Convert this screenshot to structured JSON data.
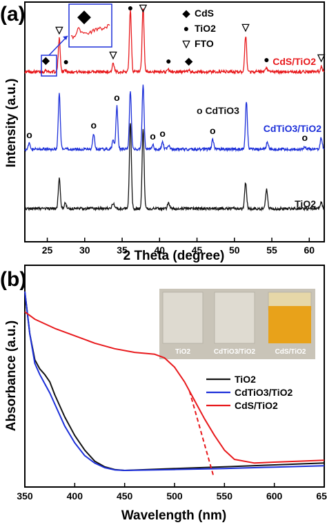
{
  "panels": {
    "a": "(a)",
    "b": "(b)"
  },
  "colors": {
    "red": "#e8191c",
    "blue": "#1c2fd9",
    "black": "#111111",
    "cds_film": "#e8a21a"
  },
  "chart_data": [
    {
      "type": "line",
      "title": "",
      "xlabel": "2 Theta (degree)",
      "ylabel": "Intensity (a.u.)",
      "xlim": [
        22,
        62
      ],
      "xticks": [
        25,
        30,
        35,
        40,
        45,
        50,
        55,
        60
      ],
      "series": [
        {
          "name": "CdS/TiO2",
          "color": "#e8191c",
          "peaks": [
            [
              24.8,
              3
            ],
            [
              26.6,
              48
            ],
            [
              27.4,
              3
            ],
            [
              33.8,
              12
            ],
            [
              36.1,
              90
            ],
            [
              37.8,
              92
            ],
            [
              41.2,
              3
            ],
            [
              43.9,
              3
            ],
            [
              51.5,
              52
            ],
            [
              54.3,
              5
            ],
            [
              61.6,
              8
            ]
          ]
        },
        {
          "name": "CdTiO3/TiO2",
          "color": "#1c2fd9",
          "peaks": [
            [
              22.6,
              8
            ],
            [
              26.6,
              80
            ],
            [
              31.2,
              22
            ],
            [
              33.8,
              14
            ],
            [
              34.3,
              62
            ],
            [
              36.1,
              85
            ],
            [
              37.8,
              92
            ],
            [
              39.1,
              6
            ],
            [
              40.4,
              10
            ],
            [
              41.2,
              6
            ],
            [
              47.1,
              14
            ],
            [
              51.6,
              70
            ],
            [
              54.4,
              10
            ],
            [
              59.4,
              4
            ],
            [
              61.6,
              17
            ]
          ]
        },
        {
          "name": "TiO2",
          "color": "#111111",
          "peaks": [
            [
              26.6,
              44
            ],
            [
              27.4,
              9
            ],
            [
              33.8,
              8
            ],
            [
              36.1,
              125
            ],
            [
              37.8,
              116
            ],
            [
              41.2,
              9
            ],
            [
              51.5,
              38
            ],
            [
              54.3,
              28
            ],
            [
              61.6,
              9
            ]
          ]
        }
      ],
      "legend": {
        "position": "top-right",
        "items": [
          {
            "symbol": "◆",
            "label": "CdS"
          },
          {
            "symbol": "●",
            "label": "TiO2"
          },
          {
            "symbol": "▽",
            "label": "FTO"
          }
        ]
      },
      "annotations": [
        {
          "text": "CdS/TiO2",
          "color": "#e8191c"
        },
        {
          "text": "o CdTiO3",
          "color": "#111111"
        },
        {
          "text": "CdTiO3/TiO2",
          "color": "#1c2fd9"
        },
        {
          "text": "TiO2",
          "color": "#111111"
        }
      ],
      "markers": [
        {
          "symbol": "▽",
          "series": 0,
          "x": [
            26.6,
            33.8,
            37.8,
            51.5,
            61.6
          ]
        },
        {
          "symbol": "●",
          "series": 0,
          "x": [
            27.5,
            36.1,
            41.2,
            54.3
          ]
        },
        {
          "symbol": "◆",
          "series": 0,
          "x": [
            24.8,
            43.9
          ]
        },
        {
          "symbol": "o",
          "series": 1,
          "x": [
            22.6,
            31.2,
            34.3,
            39.1,
            40.4,
            47.1,
            59.4
          ]
        }
      ]
    },
    {
      "type": "line",
      "title": "",
      "xlabel": "Wavelength (nm)",
      "ylabel": "Absorbance (a.u.)",
      "xlim": [
        350,
        650
      ],
      "xticks": [
        350,
        400,
        450,
        500,
        550,
        600,
        650
      ],
      "ylim": [
        0,
        1
      ],
      "series": [
        {
          "name": "TiO2",
          "color": "#111111",
          "x": [
            350,
            355,
            360,
            365,
            370,
            375,
            380,
            390,
            400,
            410,
            420,
            430,
            440,
            450,
            500,
            550,
            600,
            650
          ],
          "y": [
            0.97,
            0.74,
            0.6,
            0.55,
            0.52,
            0.48,
            0.41,
            0.29,
            0.19,
            0.11,
            0.05,
            0.02,
            0.005,
            0.0,
            0.01,
            0.02,
            0.03,
            0.04
          ]
        },
        {
          "name": "CdTiO3/TiO2",
          "color": "#1c2fd9",
          "x": [
            350,
            355,
            360,
            365,
            370,
            375,
            380,
            390,
            400,
            410,
            420,
            430,
            440,
            450,
            500,
            550,
            600,
            650
          ],
          "y": [
            0.97,
            0.74,
            0.58,
            0.52,
            0.47,
            0.42,
            0.36,
            0.24,
            0.15,
            0.08,
            0.04,
            0.015,
            0.003,
            0.0,
            0.005,
            0.01,
            0.018,
            0.025
          ]
        },
        {
          "name": "CdS/TiO2",
          "color": "#e8191c",
          "x": [
            350,
            360,
            380,
            400,
            420,
            440,
            460,
            480,
            490,
            500,
            510,
            520,
            530,
            540,
            550,
            560,
            580,
            600,
            650
          ],
          "y": [
            0.86,
            0.82,
            0.77,
            0.73,
            0.69,
            0.66,
            0.64,
            0.63,
            0.61,
            0.56,
            0.48,
            0.38,
            0.28,
            0.19,
            0.11,
            0.06,
            0.04,
            0.045,
            0.055
          ]
        }
      ],
      "extrapolation": {
        "series": "CdS/TiO2",
        "from": [
          515,
          0.43
        ],
        "to": [
          539,
          -0.03
        ],
        "style": "dashed"
      },
      "legend": {
        "position": "right",
        "items": [
          "TiO2",
          "CdTiO3/TiO2",
          "CdS/TiO2"
        ]
      },
      "photo_labels": [
        "TiO2",
        "CdTiO3/TiO2",
        "CdS/TiO2"
      ]
    }
  ]
}
